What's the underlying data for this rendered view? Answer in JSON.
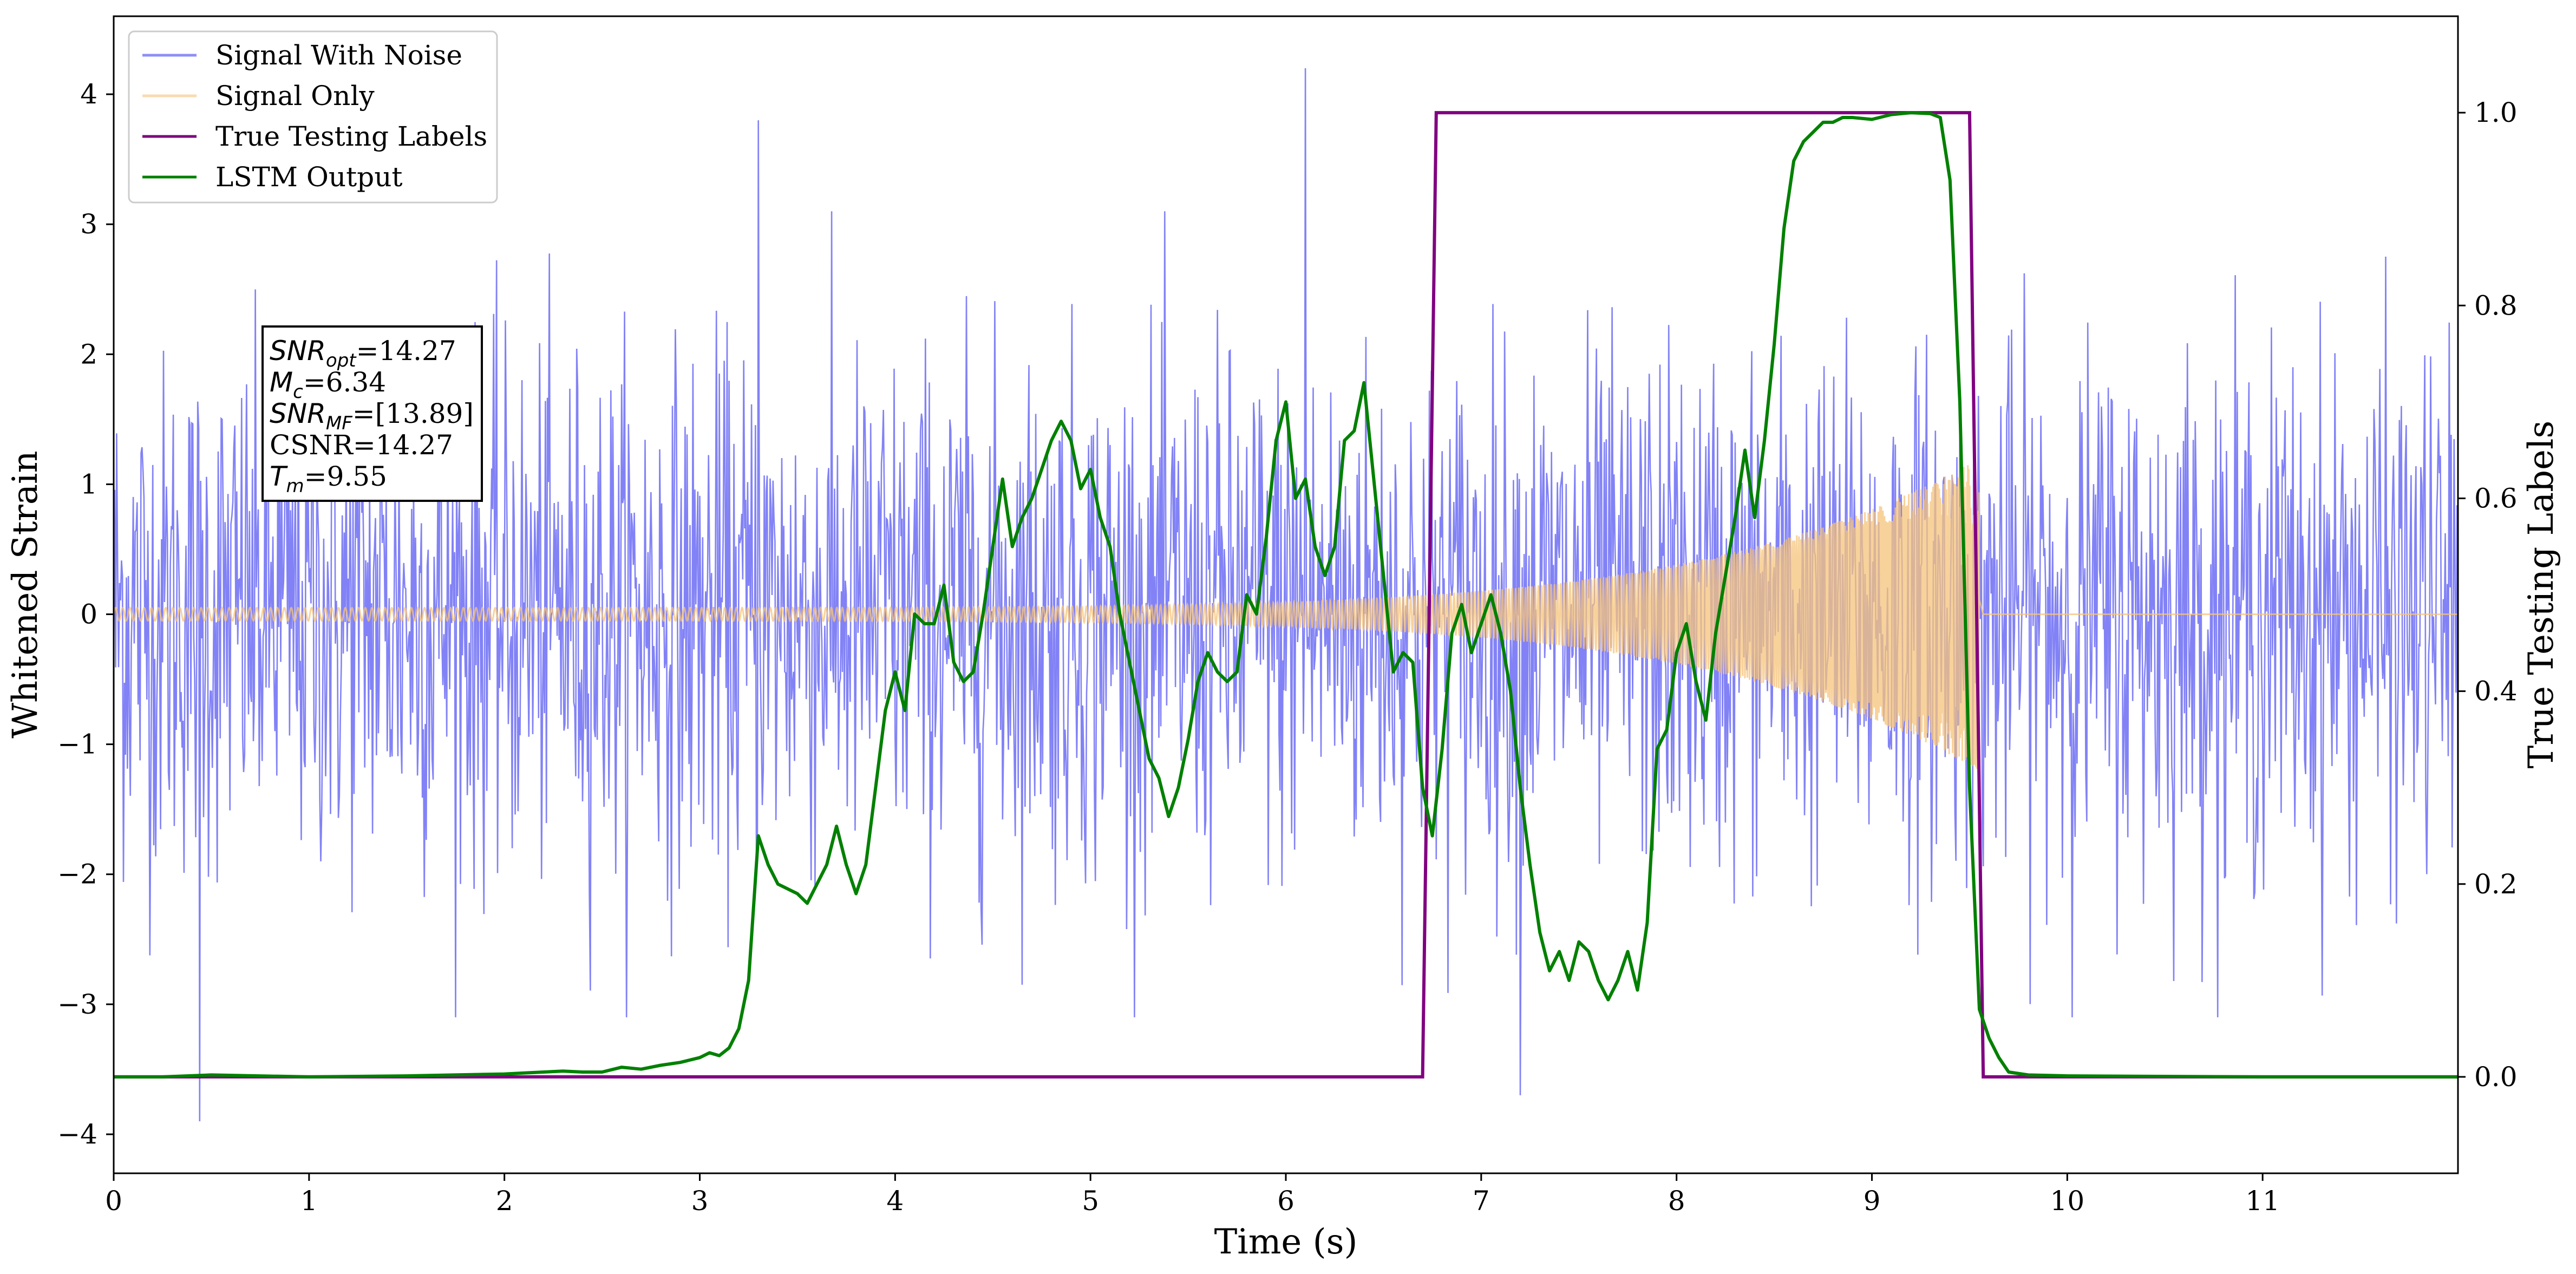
{
  "chart_data": {
    "type": "line",
    "xlabel": "Time (s)",
    "ylabel": "Whitened Strain",
    "y2label": "True Testing Labels",
    "xlim": [
      0,
      12
    ],
    "ylim": [
      -4.3,
      4.6
    ],
    "y2lim": [
      -0.1,
      1.1
    ],
    "xticks": [
      0,
      1,
      2,
      3,
      4,
      5,
      6,
      7,
      8,
      9,
      10,
      11
    ],
    "yticks": [
      -4,
      -3,
      -2,
      -1,
      0,
      1,
      2,
      3,
      4
    ],
    "yticklabels": [
      "−4",
      "−3",
      "−2",
      "−1",
      "0",
      "1",
      "2",
      "3",
      "4"
    ],
    "y2ticks": [
      0.0,
      0.2,
      0.4,
      0.6,
      0.8,
      1.0
    ],
    "y2ticklabels": [
      "0.0",
      "0.2",
      "0.4",
      "0.6",
      "0.8",
      "1.0"
    ],
    "grid": false,
    "legend_position": "top-left",
    "series": [
      {
        "name": "Signal With Noise",
        "color": "#7b7bf5",
        "axis": "left",
        "description": "dense noisy strain, roughly ±1.2 band with spikes up to 4.2 and down to -3.9",
        "notable_points": [
          [
            0.44,
            -3.9
          ],
          [
            6.1,
            4.2
          ],
          [
            7.2,
            -3.7
          ],
          [
            3.3,
            3.8
          ]
        ]
      },
      {
        "name": "Signal Only",
        "color": "#f5c37a",
        "axis": "left",
        "chirp": {
          "t_start": 0.0,
          "t_merge": 9.55,
          "amp_start": 0.05,
          "amp_merge": 1.2
        },
        "after_merge_value": 0.0
      },
      {
        "name": "True Testing Labels",
        "color": "#800080",
        "axis": "right",
        "x": [
          0,
          6.7,
          6.77,
          9.5,
          9.57,
          12
        ],
        "y": [
          0,
          0,
          1,
          1,
          0,
          0
        ]
      },
      {
        "name": "LSTM Output",
        "color": "#008000",
        "axis": "right",
        "x": [
          0,
          0.25,
          0.5,
          1.0,
          1.5,
          2.0,
          2.1,
          2.3,
          2.4,
          2.5,
          2.6,
          2.7,
          2.8,
          2.9,
          3.0,
          3.05,
          3.1,
          3.15,
          3.2,
          3.25,
          3.3,
          3.35,
          3.4,
          3.5,
          3.55,
          3.6,
          3.65,
          3.7,
          3.75,
          3.8,
          3.85,
          3.9,
          3.95,
          4.0,
          4.05,
          4.1,
          4.15,
          4.2,
          4.25,
          4.3,
          4.35,
          4.4,
          4.45,
          4.5,
          4.55,
          4.6,
          4.65,
          4.7,
          4.75,
          4.8,
          4.85,
          4.9,
          4.95,
          5.0,
          5.05,
          5.1,
          5.15,
          5.2,
          5.25,
          5.3,
          5.35,
          5.4,
          5.45,
          5.5,
          5.55,
          5.6,
          5.65,
          5.7,
          5.75,
          5.8,
          5.85,
          5.9,
          5.95,
          6.0,
          6.05,
          6.1,
          6.15,
          6.2,
          6.25,
          6.3,
          6.35,
          6.4,
          6.45,
          6.5,
          6.55,
          6.6,
          6.65,
          6.7,
          6.75,
          6.8,
          6.85,
          6.9,
          6.95,
          7.0,
          7.05,
          7.1,
          7.15,
          7.2,
          7.25,
          7.3,
          7.35,
          7.4,
          7.45,
          7.5,
          7.55,
          7.6,
          7.65,
          7.7,
          7.75,
          7.8,
          7.85,
          7.9,
          7.95,
          8.0,
          8.05,
          8.1,
          8.15,
          8.2,
          8.25,
          8.3,
          8.35,
          8.4,
          8.45,
          8.5,
          8.55,
          8.6,
          8.65,
          8.7,
          8.75,
          8.8,
          8.85,
          8.9,
          9.0,
          9.1,
          9.2,
          9.3,
          9.35,
          9.4,
          9.45,
          9.5,
          9.55,
          9.6,
          9.65,
          9.7,
          9.8,
          10.0,
          11.0,
          12.0
        ],
        "y": [
          0,
          0,
          0.002,
          0,
          0.001,
          0.003,
          0.004,
          0.006,
          0.005,
          0.005,
          0.01,
          0.008,
          0.012,
          0.015,
          0.02,
          0.025,
          0.022,
          0.03,
          0.05,
          0.1,
          0.25,
          0.22,
          0.2,
          0.19,
          0.18,
          0.2,
          0.22,
          0.26,
          0.22,
          0.19,
          0.22,
          0.3,
          0.38,
          0.42,
          0.38,
          0.48,
          0.47,
          0.47,
          0.51,
          0.43,
          0.41,
          0.42,
          0.48,
          0.55,
          0.62,
          0.55,
          0.58,
          0.6,
          0.63,
          0.66,
          0.68,
          0.66,
          0.61,
          0.63,
          0.58,
          0.55,
          0.48,
          0.43,
          0.38,
          0.33,
          0.31,
          0.27,
          0.3,
          0.35,
          0.41,
          0.44,
          0.42,
          0.41,
          0.42,
          0.5,
          0.48,
          0.56,
          0.66,
          0.7,
          0.6,
          0.62,
          0.55,
          0.52,
          0.55,
          0.66,
          0.67,
          0.72,
          0.62,
          0.52,
          0.42,
          0.44,
          0.43,
          0.3,
          0.25,
          0.34,
          0.46,
          0.49,
          0.44,
          0.47,
          0.5,
          0.46,
          0.4,
          0.3,
          0.22,
          0.15,
          0.11,
          0.13,
          0.1,
          0.14,
          0.13,
          0.1,
          0.08,
          0.1,
          0.13,
          0.09,
          0.16,
          0.34,
          0.36,
          0.44,
          0.47,
          0.41,
          0.37,
          0.46,
          0.52,
          0.58,
          0.65,
          0.58,
          0.66,
          0.76,
          0.88,
          0.95,
          0.97,
          0.98,
          0.99,
          0.99,
          0.995,
          0.995,
          0.993,
          0.998,
          1.0,
          0.999,
          0.995,
          0.93,
          0.7,
          0.3,
          0.07,
          0.04,
          0.02,
          0.005,
          0.002,
          0.001,
          0,
          0
        ]
      }
    ],
    "annotation": {
      "lines": [
        {
          "sym": "SNR",
          "sub": "opt",
          "value": "=14.27"
        },
        {
          "sym": "M",
          "sub": "c",
          "value": "=6.34"
        },
        {
          "sym": "SNR",
          "sub": "MF",
          "value": "=[13.89]"
        },
        {
          "sym": "",
          "sub": "",
          "value": "CSNR=14.27"
        },
        {
          "sym": "T",
          "sub": "m",
          "value": "=9.55"
        }
      ]
    }
  }
}
